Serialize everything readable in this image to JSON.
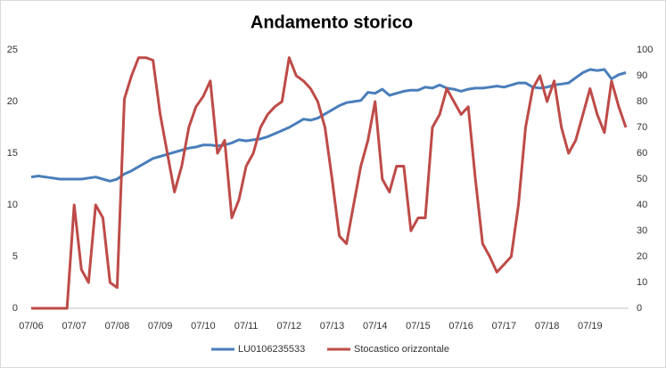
{
  "chart_data": {
    "type": "line",
    "title": "Andamento storico",
    "categories": [
      "07/06",
      null,
      null,
      null,
      null,
      null,
      "07/07",
      null,
      null,
      null,
      null,
      null,
      "07/08",
      null,
      null,
      null,
      null,
      null,
      "07/09",
      null,
      null,
      null,
      null,
      null,
      "07/10",
      null,
      null,
      null,
      null,
      null,
      "07/11",
      null,
      null,
      null,
      null,
      null,
      "07/12",
      null,
      null,
      null,
      null,
      null,
      "07/13",
      null,
      null,
      null,
      null,
      null,
      "07/14",
      null,
      null,
      null,
      null,
      null,
      "07/15",
      null,
      null,
      null,
      null,
      null,
      "07/16",
      null,
      null,
      null,
      null,
      null,
      "07/17",
      null,
      null,
      null,
      null,
      null,
      "07/18",
      null,
      null,
      null,
      null,
      null,
      "07/19",
      null,
      null,
      null,
      null,
      null
    ],
    "series": [
      {
        "name": "LU0106235533",
        "color": "#4a7ebb",
        "values": [
          12.7,
          12.8,
          12.7,
          12.6,
          12.5,
          12.5,
          12.5,
          12.5,
          12.6,
          12.7,
          12.5,
          12.3,
          12.5,
          13.0,
          13.3,
          13.7,
          14.1,
          14.5,
          14.7,
          14.9,
          15.1,
          15.3,
          15.5,
          15.6,
          15.8,
          15.8,
          15.7,
          15.8,
          16.0,
          16.3,
          16.2,
          16.3,
          16.4,
          16.6,
          16.9,
          17.2,
          17.5,
          17.9,
          18.3,
          18.2,
          18.4,
          18.8,
          19.2,
          19.6,
          19.9,
          20.0,
          20.1,
          20.9,
          20.8,
          21.2,
          20.6,
          20.8,
          21.0,
          21.1,
          21.1,
          21.4,
          21.3,
          21.6,
          21.3,
          21.2,
          21.0,
          21.2,
          21.3,
          21.3,
          21.4,
          21.5,
          21.4,
          21.6,
          21.8,
          21.8,
          21.4,
          21.3,
          21.4,
          21.6,
          21.7,
          21.8,
          22.3,
          22.8,
          23.1,
          23.0,
          23.1,
          22.2,
          22.6,
          22.8
        ]
      },
      {
        "name": "Stocastico orizzontale",
        "color": "#be4b48",
        "axis": "y2",
        "values": [
          0,
          0,
          0,
          0,
          0,
          0,
          40,
          15,
          10,
          40,
          35,
          10,
          8,
          81,
          90,
          97,
          97,
          96,
          75,
          60,
          45,
          55,
          70,
          78,
          82,
          88,
          60,
          65,
          35,
          42,
          55,
          60,
          70,
          75,
          78,
          80,
          97,
          90,
          88,
          85,
          80,
          70,
          50,
          28,
          25,
          40,
          55,
          65,
          80,
          50,
          45,
          55,
          55,
          30,
          35,
          35,
          70,
          75,
          85,
          80,
          75,
          78,
          50,
          25,
          20,
          14,
          17,
          20,
          40,
          70,
          85,
          90,
          80,
          88,
          70,
          60,
          65,
          75,
          85,
          75,
          68,
          88,
          78,
          70
        ]
      }
    ],
    "ylim": [
      0,
      25
    ],
    "yticks": [
      0,
      5,
      10,
      15,
      20,
      25
    ],
    "y2lim": [
      0,
      100
    ],
    "y2ticks": [
      0,
      10,
      20,
      30,
      40,
      50,
      60,
      70,
      80,
      90,
      100
    ],
    "grid": false,
    "legend": "bottom"
  }
}
